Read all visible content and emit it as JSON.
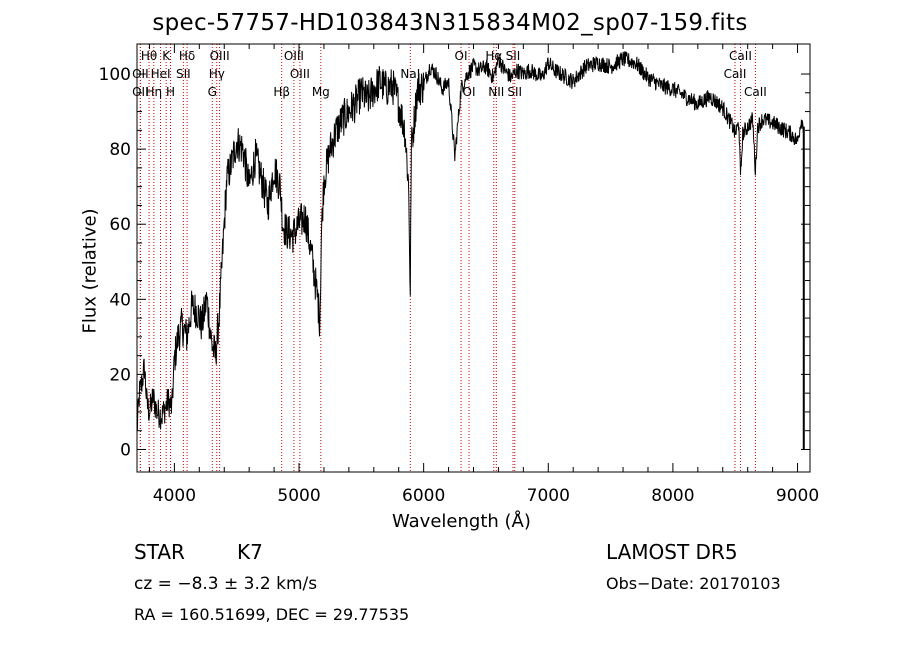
{
  "chart_data": {
    "type": "line",
    "title": "spec-57757-HD103843N315834M02_sp07-159.fits",
    "xlabel": "Wavelength (Å)",
    "ylabel": "Flux (relative)",
    "xlim": [
      3700,
      9100
    ],
    "ylim": [
      -6,
      108
    ],
    "xticks": [
      4000,
      5000,
      6000,
      7000,
      8000,
      9000
    ],
    "yticks": [
      0,
      20,
      40,
      60,
      80,
      100
    ],
    "line_color": "#000000",
    "marker_color": "#cc0000",
    "spectrum_anchors": {
      "wavelength": [
        3700,
        3720,
        3740,
        3760,
        3780,
        3800,
        3830,
        3860,
        3900,
        3950,
        3980,
        4000,
        4030,
        4060,
        4100,
        4140,
        4180,
        4220,
        4260,
        4300,
        4330,
        4360,
        4400,
        4420,
        4450,
        4500,
        4550,
        4600,
        4650,
        4700,
        4750,
        4800,
        4850,
        4870,
        4900,
        4950,
        5000,
        5050,
        5100,
        5150,
        5167,
        5180,
        5200,
        5250,
        5300,
        5350,
        5400,
        5450,
        5500,
        5550,
        5600,
        5650,
        5700,
        5750,
        5800,
        5850,
        5880,
        5893,
        5900,
        5950,
        6000,
        6050,
        6100,
        6150,
        6200,
        6250,
        6300,
        6350,
        6400,
        6450,
        6500,
        6560,
        6600,
        6650,
        6700,
        6750,
        6800,
        6850,
        6900,
        6950,
        7000,
        7050,
        7100,
        7150,
        7200,
        7300,
        7400,
        7500,
        7600,
        7700,
        7800,
        7900,
        8000,
        8100,
        8200,
        8300,
        8400,
        8480,
        8500,
        8530,
        8542,
        8560,
        8580,
        8600,
        8640,
        8662,
        8680,
        8720,
        8800,
        8900,
        8950,
        9000,
        9030,
        9050
      ],
      "flux": [
        5,
        15,
        18,
        22,
        12,
        10,
        14,
        10,
        9,
        13,
        11,
        24,
        30,
        33,
        30,
        38,
        37,
        33,
        40,
        28,
        25,
        36,
        60,
        72,
        75,
        82,
        80,
        70,
        78,
        72,
        65,
        75,
        70,
        60,
        58,
        57,
        60,
        62,
        52,
        40,
        34,
        58,
        72,
        80,
        85,
        88,
        90,
        92,
        95,
        93,
        96,
        98,
        96,
        97,
        92,
        85,
        70,
        40,
        80,
        96,
        97,
        102,
        100,
        96,
        98,
        78,
        96,
        100,
        102,
        101,
        102,
        99,
        104,
        101,
        99,
        101,
        100,
        101,
        100,
        99,
        103,
        101,
        100,
        99,
        98,
        102,
        103,
        102,
        104,
        103,
        99,
        97,
        96,
        94,
        92,
        94,
        91,
        86,
        84,
        87,
        72,
        84,
        85,
        86,
        88,
        74,
        86,
        88,
        87,
        85,
        84,
        82,
        88,
        86
      ]
    },
    "annotations": [
      {
        "label": "Hθ",
        "wavelength": 3797,
        "row": 1
      },
      {
        "label": "OII",
        "wavelength": 3727,
        "row": 2
      },
      {
        "label": "OII",
        "wavelength": 3727,
        "row": 3
      },
      {
        "label": "HeI",
        "wavelength": 3889,
        "row": 2
      },
      {
        "label": "Hη",
        "wavelength": 3835,
        "row": 3
      },
      {
        "label": "K",
        "wavelength": 3934,
        "row": 1
      },
      {
        "label": "H",
        "wavelength": 3969,
        "row": 3
      },
      {
        "label": "SII",
        "wavelength": 4072,
        "row": 2
      },
      {
        "label": "Hδ",
        "wavelength": 4102,
        "row": 1
      },
      {
        "label": "OIII",
        "wavelength": 4363,
        "row": 1
      },
      {
        "label": "Hγ",
        "wavelength": 4340,
        "row": 2
      },
      {
        "label": "G",
        "wavelength": 4304,
        "row": 3
      },
      {
        "label": "OIII",
        "wavelength": 4959,
        "row": 1
      },
      {
        "label": "OIII",
        "wavelength": 5007,
        "row": 2
      },
      {
        "label": "Hβ",
        "wavelength": 4861,
        "row": 3
      },
      {
        "label": "Mg",
        "wavelength": 5175,
        "row": 3
      },
      {
        "label": "NaI",
        "wavelength": 5893,
        "row": 2
      },
      {
        "label": "OI",
        "wavelength": 6300,
        "row": 1
      },
      {
        "label": "OI",
        "wavelength": 6364,
        "row": 3
      },
      {
        "label": "Hα",
        "wavelength": 6563,
        "row": 1
      },
      {
        "label": "SII",
        "wavelength": 6717,
        "row": 1
      },
      {
        "label": "NII",
        "wavelength": 6583,
        "row": 3
      },
      {
        "label": "SII",
        "wavelength": 6731,
        "row": 3
      },
      {
        "label": "CaII",
        "wavelength": 8542,
        "row": 1
      },
      {
        "label": "CaII",
        "wavelength": 8498,
        "row": 2
      },
      {
        "label": "CaII",
        "wavelength": 8662,
        "row": 3
      }
    ]
  },
  "info": {
    "object_type": "STAR",
    "subclass": "K7",
    "survey": "LAMOST  DR5",
    "cz": "cz = −8.3 ± 3.2 km/s",
    "obs_date": "Obs−Date: 20170103",
    "radec": "RA = 160.51699, DEC =  29.77535"
  }
}
